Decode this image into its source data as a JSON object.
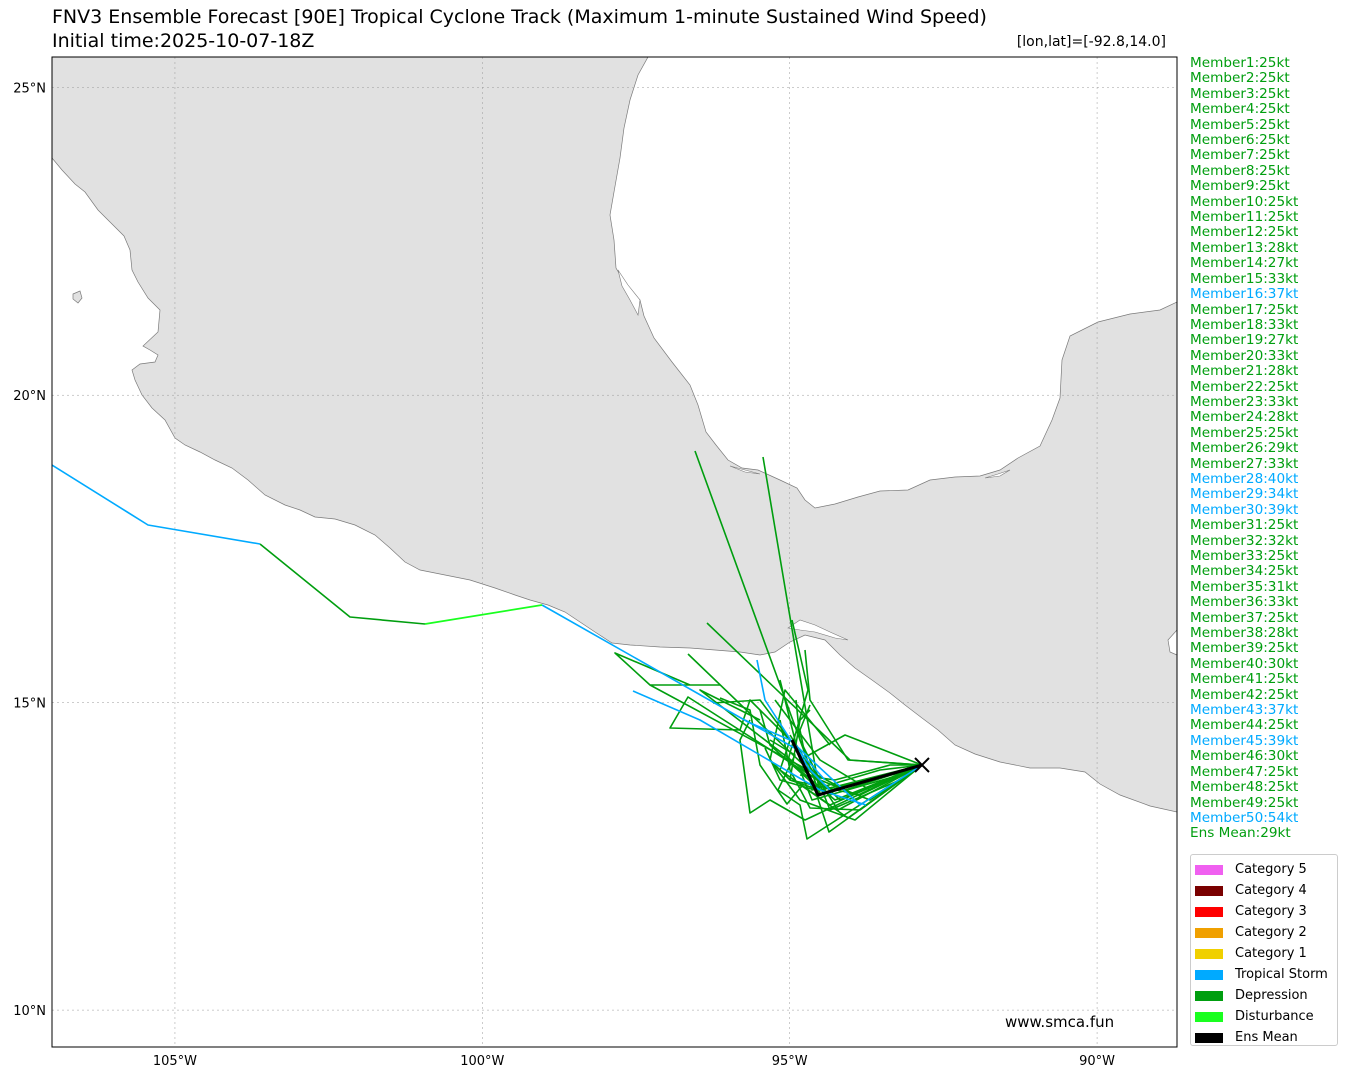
{
  "header": {
    "title": "FNV3 Ensemble Forecast [90E] Tropical Cyclone Track (Maximum 1-minute Sustained Wind Speed)",
    "subtitle": "Initial time:2025-10-07-18Z",
    "coord_readout": "[lon,lat]=[-92.8,14.0]"
  },
  "colors": {
    "land": "#e1e1e1",
    "coast": "#7a7a7a",
    "depression": "#009e0f",
    "tropical_storm": "#00aaff",
    "disturbance": "#19ff1f",
    "ens_mean": "#000000"
  },
  "map": {
    "lon_range": [
      -107,
      -88.7
    ],
    "lat_range": [
      9.4,
      25.5
    ],
    "x_ticks": [
      "105°W",
      "100°W",
      "95°W",
      "90°W"
    ],
    "y_ticks": [
      "25°N",
      "20°N",
      "15°N",
      "10°N"
    ],
    "grid": true,
    "initial_position": [
      -92.8,
      14.0
    ]
  },
  "members": [
    {
      "label": "Member1:25kt",
      "cat": "depression"
    },
    {
      "label": "Member2:25kt",
      "cat": "depression"
    },
    {
      "label": "Member3:25kt",
      "cat": "depression"
    },
    {
      "label": "Member4:25kt",
      "cat": "depression"
    },
    {
      "label": "Member5:25kt",
      "cat": "depression"
    },
    {
      "label": "Member6:25kt",
      "cat": "depression"
    },
    {
      "label": "Member7:25kt",
      "cat": "depression"
    },
    {
      "label": "Member8:25kt",
      "cat": "depression"
    },
    {
      "label": "Member9:25kt",
      "cat": "depression"
    },
    {
      "label": "Member10:25kt",
      "cat": "depression"
    },
    {
      "label": "Member11:25kt",
      "cat": "depression"
    },
    {
      "label": "Member12:25kt",
      "cat": "depression"
    },
    {
      "label": "Member13:28kt",
      "cat": "depression"
    },
    {
      "label": "Member14:27kt",
      "cat": "depression"
    },
    {
      "label": "Member15:33kt",
      "cat": "depression"
    },
    {
      "label": "Member16:37kt",
      "cat": "tropical_storm"
    },
    {
      "label": "Member17:25kt",
      "cat": "depression"
    },
    {
      "label": "Member18:33kt",
      "cat": "depression"
    },
    {
      "label": "Member19:27kt",
      "cat": "depression"
    },
    {
      "label": "Member20:33kt",
      "cat": "depression"
    },
    {
      "label": "Member21:28kt",
      "cat": "depression"
    },
    {
      "label": "Member22:25kt",
      "cat": "depression"
    },
    {
      "label": "Member23:33kt",
      "cat": "depression"
    },
    {
      "label": "Member24:28kt",
      "cat": "depression"
    },
    {
      "label": "Member25:25kt",
      "cat": "depression"
    },
    {
      "label": "Member26:29kt",
      "cat": "depression"
    },
    {
      "label": "Member27:33kt",
      "cat": "depression"
    },
    {
      "label": "Member28:40kt",
      "cat": "tropical_storm"
    },
    {
      "label": "Member29:34kt",
      "cat": "tropical_storm"
    },
    {
      "label": "Member30:39kt",
      "cat": "tropical_storm"
    },
    {
      "label": "Member31:25kt",
      "cat": "depression"
    },
    {
      "label": "Member32:32kt",
      "cat": "depression"
    },
    {
      "label": "Member33:25kt",
      "cat": "depression"
    },
    {
      "label": "Member34:25kt",
      "cat": "depression"
    },
    {
      "label": "Member35:31kt",
      "cat": "depression"
    },
    {
      "label": "Member36:33kt",
      "cat": "depression"
    },
    {
      "label": "Member37:25kt",
      "cat": "depression"
    },
    {
      "label": "Member38:28kt",
      "cat": "depression"
    },
    {
      "label": "Member39:25kt",
      "cat": "depression"
    },
    {
      "label": "Member40:30kt",
      "cat": "depression"
    },
    {
      "label": "Member41:25kt",
      "cat": "depression"
    },
    {
      "label": "Member42:25kt",
      "cat": "depression"
    },
    {
      "label": "Member43:37kt",
      "cat": "tropical_storm"
    },
    {
      "label": "Member44:25kt",
      "cat": "depression"
    },
    {
      "label": "Member45:39kt",
      "cat": "tropical_storm"
    },
    {
      "label": "Member46:30kt",
      "cat": "depression"
    },
    {
      "label": "Member47:25kt",
      "cat": "depression"
    },
    {
      "label": "Member48:25kt",
      "cat": "depression"
    },
    {
      "label": "Member49:25kt",
      "cat": "depression"
    },
    {
      "label": "Member50:54kt",
      "cat": "tropical_storm"
    },
    {
      "label": "Ens Mean:29kt",
      "cat": "depression"
    }
  ],
  "legend": [
    {
      "label": "Category 5",
      "color": "#f060f0"
    },
    {
      "label": "Category 4",
      "color": "#7a0000"
    },
    {
      "label": "Category 3",
      "color": "#ff0000"
    },
    {
      "label": "Category 2",
      "color": "#f0a000"
    },
    {
      "label": "Category 1",
      "color": "#f0d000"
    },
    {
      "label": "Tropical Storm",
      "color": "#00aaff"
    },
    {
      "label": "Depression",
      "color": "#009e0f"
    },
    {
      "label": "Disturbance",
      "color": "#19ff1f"
    },
    {
      "label": "Ens Mean",
      "color": "#000000"
    }
  ],
  "credit": "www.smca.fun"
}
